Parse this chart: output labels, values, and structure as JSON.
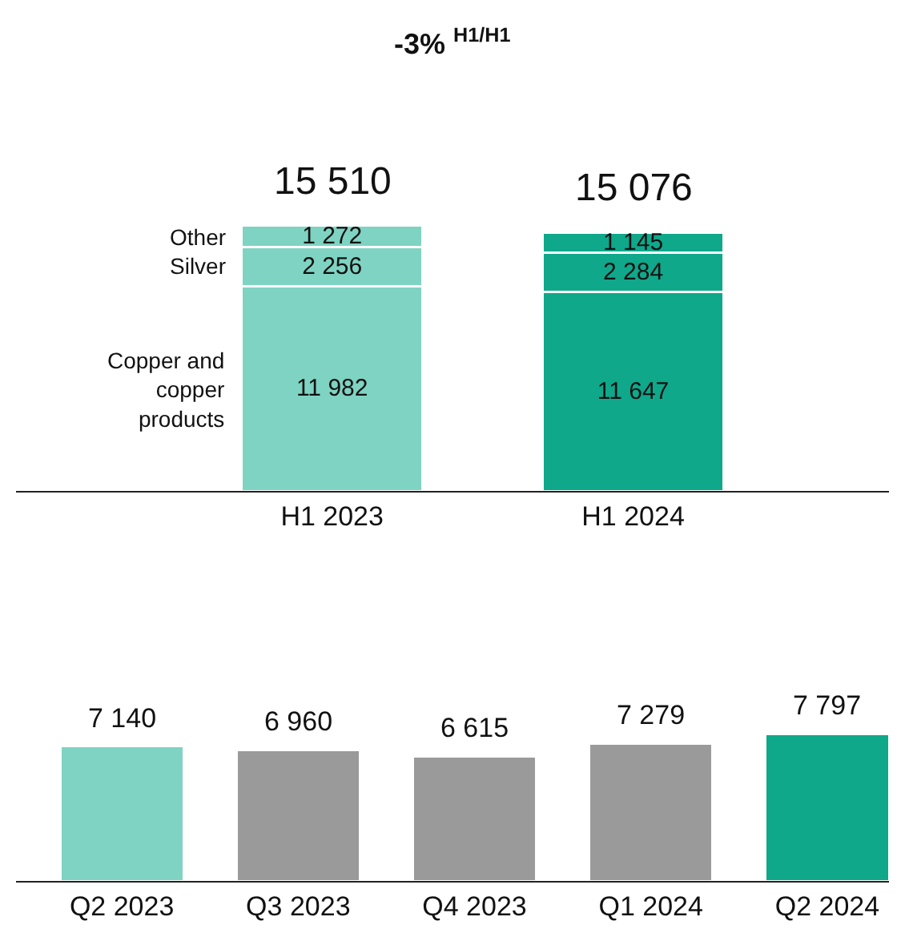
{
  "chart_data": [
    {
      "type": "bar",
      "title": "-3% $^{H1/H1}$",
      "stacked": true,
      "categories": [
        "H1 2023",
        "H1 2024"
      ],
      "series": [
        {
          "name": "Copper and copper products",
          "colors": [
            "#7fd3c2",
            "#0fa88b"
          ],
          "values": [
            11982,
            11647
          ],
          "value_labels": [
            "11 982",
            "11 647"
          ]
        },
        {
          "name": "Silver",
          "colors": [
            "#7fd3c2",
            "#0fa88b"
          ],
          "values": [
            2256,
            2284
          ],
          "value_labels": [
            "2 256",
            "2 284"
          ]
        },
        {
          "name": "Other",
          "colors": [
            "#7fd3c2",
            "#0fa88b"
          ],
          "values": [
            1272,
            1145
          ],
          "value_labels": [
            "1 272",
            "1 145"
          ]
        }
      ],
      "totals": [
        "15 510",
        "15 076"
      ]
    },
    {
      "type": "bar",
      "categories": [
        "Q2 2023",
        "Q3 2023",
        "Q4 2023",
        "Q1 2024",
        "Q2 2024"
      ],
      "values": [
        7140,
        6960,
        6615,
        7279,
        7797
      ],
      "colors": [
        "#7fd3c2",
        "#9a9a9a",
        "#9a9a9a",
        "#9a9a9a",
        "#0fa88b"
      ],
      "value_labels": [
        "7 140",
        "6 960",
        "6 615",
        "7 279",
        "7 797"
      ]
    }
  ]
}
